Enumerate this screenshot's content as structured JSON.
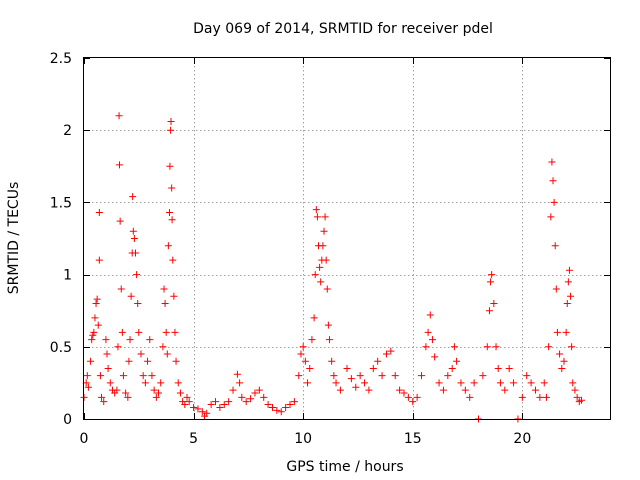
{
  "chart_data": {
    "type": "scatter",
    "title": "Day 069 of 2014, SRMTID for receiver pdel",
    "xlabel": "GPS time / hours",
    "ylabel": "SRMTID / TECUs",
    "xlim": [
      0,
      24
    ],
    "ylim": [
      0,
      2.5
    ],
    "x_ticks": [
      0,
      5,
      10,
      15,
      20
    ],
    "x_tick_labels": [
      "0",
      "5",
      "10",
      "15",
      "20"
    ],
    "y_ticks": [
      0,
      0.5,
      1,
      1.5,
      2,
      2.5
    ],
    "y_tick_labels": [
      "0",
      "0.5",
      "1",
      "1.5",
      "2",
      "2.5"
    ],
    "grid": true,
    "marker": "+",
    "series": [
      {
        "name": "SRMTID",
        "color": "#ff0000",
        "points": [
          [
            0.0,
            0.15
          ],
          [
            0.1,
            0.25
          ],
          [
            0.15,
            0.3
          ],
          [
            0.2,
            0.22
          ],
          [
            0.3,
            0.4
          ],
          [
            0.35,
            0.55
          ],
          [
            0.4,
            0.58
          ],
          [
            0.45,
            0.6
          ],
          [
            0.5,
            0.7
          ],
          [
            0.55,
            0.8
          ],
          [
            0.6,
            0.83
          ],
          [
            0.65,
            0.65
          ],
          [
            0.7,
            1.43
          ],
          [
            0.7,
            1.1
          ],
          [
            0.75,
            0.3
          ],
          [
            0.8,
            0.15
          ],
          [
            0.9,
            0.12
          ],
          [
            1.0,
            0.55
          ],
          [
            1.05,
            0.45
          ],
          [
            1.1,
            0.35
          ],
          [
            1.2,
            0.25
          ],
          [
            1.3,
            0.2
          ],
          [
            1.4,
            0.18
          ],
          [
            1.5,
            0.2
          ],
          [
            1.55,
            0.5
          ],
          [
            1.6,
            2.1
          ],
          [
            1.62,
            1.76
          ],
          [
            1.65,
            1.37
          ],
          [
            1.7,
            0.9
          ],
          [
            1.75,
            0.6
          ],
          [
            1.8,
            0.3
          ],
          [
            1.9,
            0.18
          ],
          [
            2.0,
            0.15
          ],
          [
            2.05,
            0.4
          ],
          [
            2.1,
            0.55
          ],
          [
            2.15,
            0.85
          ],
          [
            2.2,
            1.15
          ],
          [
            2.22,
            1.54
          ],
          [
            2.25,
            1.3
          ],
          [
            2.3,
            1.25
          ],
          [
            2.35,
            1.15
          ],
          [
            2.4,
            1.0
          ],
          [
            2.45,
            0.8
          ],
          [
            2.5,
            0.6
          ],
          [
            2.6,
            0.45
          ],
          [
            2.7,
            0.3
          ],
          [
            2.8,
            0.25
          ],
          [
            2.9,
            0.4
          ],
          [
            3.0,
            0.55
          ],
          [
            3.1,
            0.3
          ],
          [
            3.2,
            0.2
          ],
          [
            3.3,
            0.15
          ],
          [
            3.4,
            0.18
          ],
          [
            3.5,
            0.25
          ],
          [
            3.6,
            0.5
          ],
          [
            3.65,
            0.9
          ],
          [
            3.7,
            0.8
          ],
          [
            3.75,
            0.6
          ],
          [
            3.8,
            0.45
          ],
          [
            3.85,
            1.2
          ],
          [
            3.9,
            1.43
          ],
          [
            3.92,
            1.75
          ],
          [
            3.95,
            2.0
          ],
          [
            3.97,
            2.06
          ],
          [
            4.0,
            1.6
          ],
          [
            4.02,
            1.38
          ],
          [
            4.05,
            1.1
          ],
          [
            4.1,
            0.85
          ],
          [
            4.15,
            0.6
          ],
          [
            4.2,
            0.4
          ],
          [
            4.3,
            0.25
          ],
          [
            4.4,
            0.18
          ],
          [
            4.5,
            0.12
          ],
          [
            4.6,
            0.1
          ],
          [
            4.7,
            0.15
          ],
          [
            4.8,
            0.12
          ],
          [
            5.0,
            0.08
          ],
          [
            5.2,
            0.07
          ],
          [
            5.4,
            0.05
          ],
          [
            5.5,
            0.02
          ],
          [
            5.6,
            0.04
          ],
          [
            5.8,
            0.1
          ],
          [
            6.0,
            0.12
          ],
          [
            6.2,
            0.08
          ],
          [
            6.4,
            0.1
          ],
          [
            6.6,
            0.12
          ],
          [
            6.8,
            0.2
          ],
          [
            7.0,
            0.31
          ],
          [
            7.1,
            0.25
          ],
          [
            7.2,
            0.15
          ],
          [
            7.4,
            0.12
          ],
          [
            7.6,
            0.14
          ],
          [
            7.8,
            0.18
          ],
          [
            8.0,
            0.2
          ],
          [
            8.2,
            0.15
          ],
          [
            8.4,
            0.1
          ],
          [
            8.6,
            0.08
          ],
          [
            8.8,
            0.06
          ],
          [
            9.0,
            0.05
          ],
          [
            9.2,
            0.08
          ],
          [
            9.4,
            0.1
          ],
          [
            9.6,
            0.12
          ],
          [
            9.8,
            0.3
          ],
          [
            9.9,
            0.45
          ],
          [
            10.0,
            0.5
          ],
          [
            10.1,
            0.4
          ],
          [
            10.2,
            0.25
          ],
          [
            10.3,
            0.35
          ],
          [
            10.4,
            0.55
          ],
          [
            10.5,
            0.7
          ],
          [
            10.55,
            1.0
          ],
          [
            10.6,
            1.45
          ],
          [
            10.65,
            1.4
          ],
          [
            10.7,
            1.2
          ],
          [
            10.75,
            1.05
          ],
          [
            10.8,
            0.95
          ],
          [
            10.85,
            1.1
          ],
          [
            10.9,
            1.2
          ],
          [
            10.95,
            1.3
          ],
          [
            11.0,
            1.4
          ],
          [
            11.05,
            1.1
          ],
          [
            11.1,
            0.9
          ],
          [
            11.15,
            0.65
          ],
          [
            11.2,
            0.55
          ],
          [
            11.3,
            0.4
          ],
          [
            11.4,
            0.3
          ],
          [
            11.5,
            0.25
          ],
          [
            11.7,
            0.2
          ],
          [
            12.0,
            0.35
          ],
          [
            12.2,
            0.28
          ],
          [
            12.4,
            0.22
          ],
          [
            12.6,
            0.3
          ],
          [
            12.8,
            0.25
          ],
          [
            13.0,
            0.2
          ],
          [
            13.2,
            0.35
          ],
          [
            13.4,
            0.4
          ],
          [
            13.6,
            0.3
          ],
          [
            13.8,
            0.45
          ],
          [
            14.0,
            0.47
          ],
          [
            14.2,
            0.3
          ],
          [
            14.4,
            0.2
          ],
          [
            14.6,
            0.18
          ],
          [
            14.8,
            0.15
          ],
          [
            15.0,
            0.12
          ],
          [
            15.2,
            0.15
          ],
          [
            15.4,
            0.3
          ],
          [
            15.6,
            0.5
          ],
          [
            15.7,
            0.6
          ],
          [
            15.8,
            0.72
          ],
          [
            15.9,
            0.55
          ],
          [
            16.0,
            0.43
          ],
          [
            16.2,
            0.25
          ],
          [
            16.4,
            0.2
          ],
          [
            16.6,
            0.3
          ],
          [
            16.8,
            0.35
          ],
          [
            16.9,
            0.5
          ],
          [
            17.0,
            0.4
          ],
          [
            17.2,
            0.25
          ],
          [
            17.4,
            0.2
          ],
          [
            17.6,
            0.15
          ],
          [
            17.8,
            0.25
          ],
          [
            18.0,
            0.0
          ],
          [
            18.2,
            0.3
          ],
          [
            18.4,
            0.5
          ],
          [
            18.5,
            0.75
          ],
          [
            18.55,
            0.95
          ],
          [
            18.6,
            1.0
          ],
          [
            18.7,
            0.8
          ],
          [
            18.8,
            0.5
          ],
          [
            18.9,
            0.35
          ],
          [
            19.0,
            0.25
          ],
          [
            19.2,
            0.2
          ],
          [
            19.4,
            0.35
          ],
          [
            19.6,
            0.25
          ],
          [
            19.8,
            0.0
          ],
          [
            20.0,
            0.15
          ],
          [
            20.2,
            0.3
          ],
          [
            20.4,
            0.25
          ],
          [
            20.6,
            0.2
          ],
          [
            20.8,
            0.15
          ],
          [
            21.0,
            0.25
          ],
          [
            21.1,
            0.15
          ],
          [
            21.2,
            0.5
          ],
          [
            21.3,
            1.4
          ],
          [
            21.35,
            1.78
          ],
          [
            21.4,
            1.65
          ],
          [
            21.45,
            1.5
          ],
          [
            21.5,
            1.2
          ],
          [
            21.55,
            0.9
          ],
          [
            21.6,
            0.6
          ],
          [
            21.7,
            0.45
          ],
          [
            21.8,
            0.35
          ],
          [
            21.9,
            0.4
          ],
          [
            22.0,
            0.6
          ],
          [
            22.05,
            0.8
          ],
          [
            22.1,
            0.95
          ],
          [
            22.15,
            1.03
          ],
          [
            22.2,
            0.85
          ],
          [
            22.25,
            0.5
          ],
          [
            22.3,
            0.25
          ],
          [
            22.4,
            0.2
          ],
          [
            22.5,
            0.15
          ],
          [
            22.6,
            0.12
          ],
          [
            22.7,
            0.13
          ]
        ]
      }
    ]
  }
}
